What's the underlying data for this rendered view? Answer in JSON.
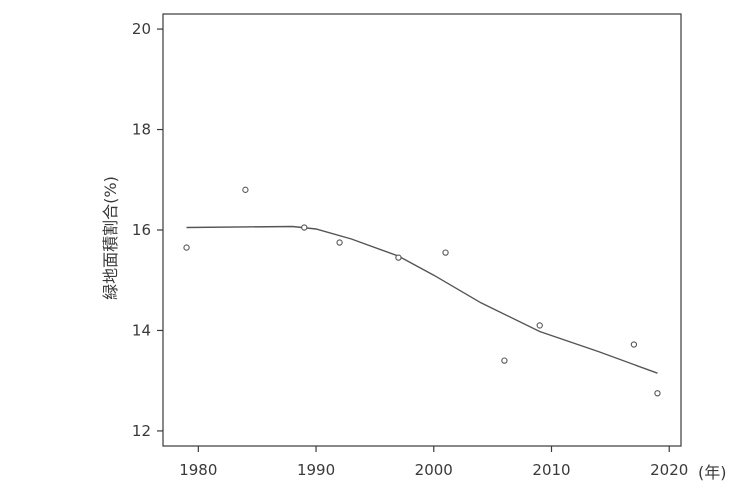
{
  "chart_data": {
    "type": "scatter",
    "title": "",
    "xlabel": "",
    "x_unit_label": "(年)",
    "ylabel": "緑地面積割合(%)",
    "xlim": [
      1977,
      2021
    ],
    "ylim": [
      11.7,
      20.3
    ],
    "x_ticks": [
      1980,
      1990,
      2000,
      2010,
      2020
    ],
    "y_ticks": [
      12,
      14,
      16,
      18,
      20
    ],
    "grid": false,
    "legend": "none",
    "series": [
      {
        "kind": "points",
        "x": [
          1979,
          1984,
          1989,
          1992,
          1997,
          2001,
          2006,
          2009,
          2017,
          2019
        ],
        "y": [
          15.65,
          16.8,
          16.05,
          15.75,
          15.45,
          15.55,
          13.4,
          14.1,
          13.72,
          12.75
        ]
      },
      {
        "kind": "fitted_line",
        "x": [
          1979,
          1988,
          1990,
          1993,
          1997,
          2000,
          2004,
          2009,
          2014,
          2019
        ],
        "y": [
          16.05,
          16.07,
          16.02,
          15.82,
          15.48,
          15.1,
          14.55,
          13.98,
          13.58,
          13.15
        ]
      }
    ]
  },
  "colors": {
    "axis": "#3a3a3a",
    "points": "#555555",
    "line": "#555555"
  }
}
